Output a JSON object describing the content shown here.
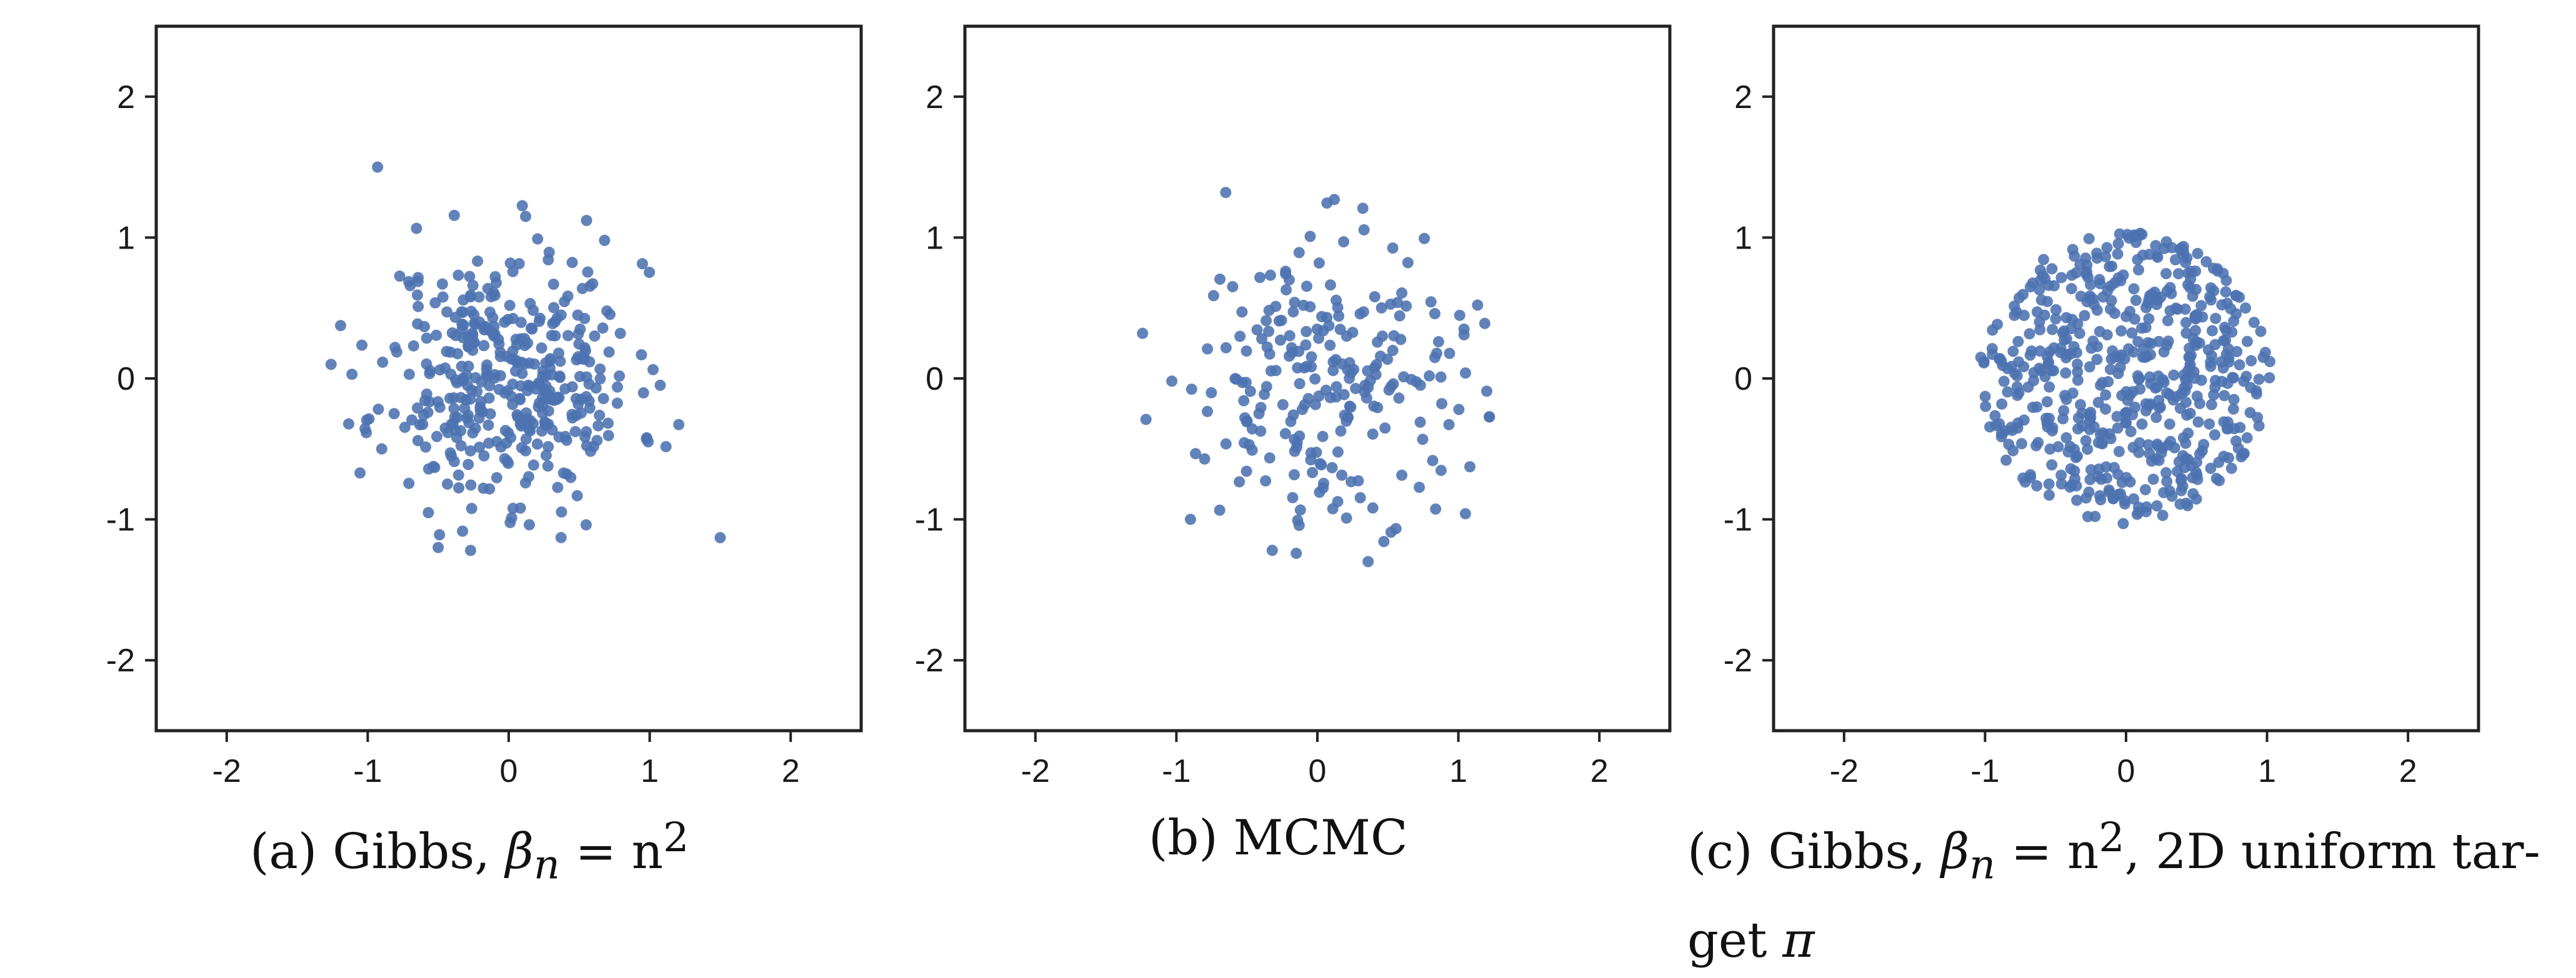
{
  "figure": {
    "point_color": "#4c72b0",
    "axes_color": "#222222"
  },
  "chart_data": [
    {
      "type": "scatter",
      "caption": "(a) Gibbs, β_n = n^2",
      "caption_parts": {
        "prefix": "(a) Gibbs, ",
        "symbol": "β",
        "subscript": "n",
        "equals": " = n",
        "superscript": "2",
        "suffix": ""
      },
      "xlim": [
        -2.5,
        2.5
      ],
      "ylim": [
        -2.5,
        2.5
      ],
      "xticks": [
        "-2",
        "-1",
        "0",
        "1",
        "2"
      ],
      "yticks": [
        "2",
        "1",
        "0",
        "-1",
        "-2"
      ],
      "xlabel": "",
      "ylabel": "",
      "grid": false,
      "distribution": {
        "shape": "gaussian",
        "center": [
          0,
          0
        ],
        "spread": 0.45,
        "count": 400,
        "seed": 11
      },
      "points": [
        [
          -0.93,
          1.5
        ],
        [
          1.5,
          -1.13
        ],
        [
          -0.5,
          -1.2
        ],
        [
          0.12,
          1.15
        ],
        [
          -1.26,
          0.1
        ],
        [
          0.68,
          0.98
        ]
      ]
    },
    {
      "type": "scatter",
      "caption": "(b) MCMC",
      "caption_parts": {
        "prefix": "(b) MCMC",
        "symbol": "",
        "subscript": "",
        "equals": "",
        "superscript": "",
        "suffix": ""
      },
      "xlim": [
        -2.5,
        2.5
      ],
      "ylim": [
        -2.5,
        2.5
      ],
      "xticks": [
        "-2",
        "-1",
        "0",
        "1",
        "2"
      ],
      "yticks": [
        "2",
        "1",
        "0",
        "-1",
        "-2"
      ],
      "xlabel": "",
      "ylabel": "",
      "grid": false,
      "distribution": {
        "shape": "gaussian",
        "center": [
          0,
          0
        ],
        "spread": 0.5,
        "count": 230,
        "seed": 29
      },
      "points": [
        [
          -0.65,
          1.32
        ],
        [
          0.12,
          1.27
        ],
        [
          -1.24,
          0.32
        ],
        [
          1.05,
          -0.96
        ],
        [
          -0.9,
          -1.0
        ],
        [
          0.36,
          -1.3
        ],
        [
          -0.32,
          -1.22
        ],
        [
          1.04,
          0.35
        ]
      ]
    },
    {
      "type": "scatter",
      "caption": "(c) Gibbs, β_n = n^2, 2D uniform target π",
      "caption_parts": {
        "prefix": "(c) Gibbs, ",
        "symbol": "β",
        "subscript": "n",
        "equals": " = n",
        "superscript": "2",
        "suffix": ", 2D uniform tar-",
        "line2": "get ",
        "line2_symbol": "π"
      },
      "xlim": [
        -2.5,
        2.5
      ],
      "ylim": [
        -2.5,
        2.5
      ],
      "xticks": [
        "-2",
        "-1",
        "0",
        "1",
        "2"
      ],
      "yticks": [
        "2",
        "1",
        "0",
        "-1",
        "-2"
      ],
      "xlabel": "",
      "ylabel": "",
      "grid": false,
      "distribution": {
        "shape": "uniform-disk",
        "center": [
          0,
          0
        ],
        "radius": 1.03,
        "count": 560,
        "seed": 7
      },
      "points": [
        [
          0.1,
          1.03
        ],
        [
          -0.02,
          -1.03
        ],
        [
          1.02,
          0.12
        ],
        [
          -1.03,
          0.15
        ]
      ]
    }
  ]
}
